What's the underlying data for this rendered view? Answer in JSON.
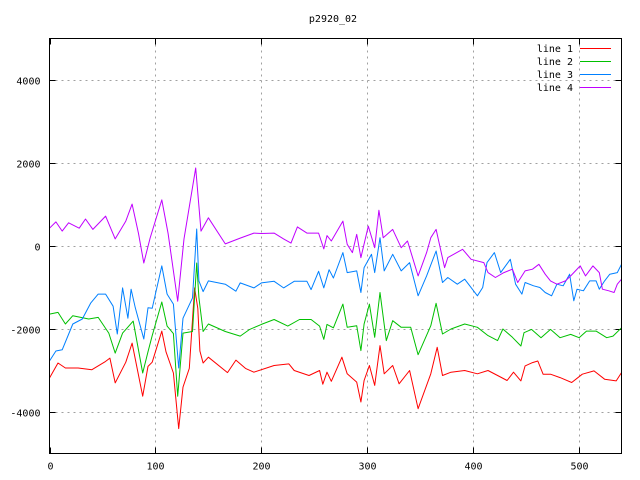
{
  "chart_data": {
    "type": "line",
    "title": "p2920_02",
    "xlabel": "",
    "ylabel": "",
    "xlim": [
      0,
      540
    ],
    "ylim": [
      -5000,
      5000
    ],
    "xticks": [
      0,
      100,
      200,
      300,
      400,
      500
    ],
    "yticks": [
      -4000,
      -2000,
      0,
      2000,
      4000
    ],
    "grid": true,
    "legend_position": "top-right",
    "series": [
      {
        "name": "line 1",
        "color": "#ff0000",
        "points": [
          [
            0,
            -3180
          ],
          [
            8,
            -2820
          ],
          [
            15,
            -2940
          ],
          [
            27,
            -2940
          ],
          [
            40,
            -2980
          ],
          [
            53,
            -2780
          ],
          [
            57,
            -2700
          ],
          [
            62,
            -3300
          ],
          [
            72,
            -2800
          ],
          [
            78,
            -2340
          ],
          [
            88,
            -3620
          ],
          [
            93,
            -2900
          ],
          [
            97,
            -2800
          ],
          [
            106,
            -2050
          ],
          [
            110,
            -2550
          ],
          [
            117,
            -3060
          ],
          [
            122,
            -4400
          ],
          [
            126,
            -3400
          ],
          [
            132,
            -2950
          ],
          [
            137,
            -1010
          ],
          [
            140,
            -1500
          ],
          [
            142,
            -2530
          ],
          [
            145,
            -2820
          ],
          [
            150,
            -2680
          ],
          [
            168,
            -3050
          ],
          [
            176,
            -2750
          ],
          [
            185,
            -2950
          ],
          [
            193,
            -3040
          ],
          [
            212,
            -2880
          ],
          [
            226,
            -2840
          ],
          [
            231,
            -3000
          ],
          [
            245,
            -3120
          ],
          [
            255,
            -3000
          ],
          [
            258,
            -3330
          ],
          [
            262,
            -3040
          ],
          [
            266,
            -3260
          ],
          [
            276,
            -2680
          ],
          [
            281,
            -3080
          ],
          [
            290,
            -3280
          ],
          [
            294,
            -3760
          ],
          [
            297,
            -3240
          ],
          [
            302,
            -2880
          ],
          [
            307,
            -3360
          ],
          [
            312,
            -2400
          ],
          [
            316,
            -3080
          ],
          [
            324,
            -2880
          ],
          [
            330,
            -3320
          ],
          [
            340,
            -3000
          ],
          [
            348,
            -3920
          ],
          [
            360,
            -3080
          ],
          [
            366,
            -2440
          ],
          [
            371,
            -3120
          ],
          [
            379,
            -3040
          ],
          [
            392,
            -3000
          ],
          [
            404,
            -3080
          ],
          [
            414,
            -3000
          ],
          [
            423,
            -3120
          ],
          [
            432,
            -3240
          ],
          [
            438,
            -3040
          ],
          [
            445,
            -3250
          ],
          [
            449,
            -2890
          ],
          [
            456,
            -2810
          ],
          [
            461,
            -2770
          ],
          [
            466,
            -3090
          ],
          [
            473,
            -3090
          ],
          [
            482,
            -3170
          ],
          [
            493,
            -3290
          ],
          [
            503,
            -3090
          ],
          [
            514,
            -3010
          ],
          [
            524,
            -3210
          ],
          [
            535,
            -3250
          ],
          [
            540,
            -3050
          ]
        ]
      },
      {
        "name": "line 2",
        "color": "#00c000",
        "points": [
          [
            0,
            -1640
          ],
          [
            8,
            -1600
          ],
          [
            15,
            -1880
          ],
          [
            22,
            -1680
          ],
          [
            37,
            -1760
          ],
          [
            46,
            -1720
          ],
          [
            56,
            -2100
          ],
          [
            62,
            -2580
          ],
          [
            69,
            -2100
          ],
          [
            79,
            -1810
          ],
          [
            88,
            -3060
          ],
          [
            93,
            -2550
          ],
          [
            97,
            -2160
          ],
          [
            106,
            -1350
          ],
          [
            111,
            -1930
          ],
          [
            117,
            -2110
          ],
          [
            121,
            -3620
          ],
          [
            126,
            -2100
          ],
          [
            135,
            -2060
          ],
          [
            139,
            -410
          ],
          [
            141,
            -1240
          ],
          [
            145,
            -2060
          ],
          [
            150,
            -1880
          ],
          [
            166,
            -2060
          ],
          [
            180,
            -2170
          ],
          [
            189,
            -2010
          ],
          [
            200,
            -1890
          ],
          [
            212,
            -1770
          ],
          [
            225,
            -1930
          ],
          [
            236,
            -1770
          ],
          [
            247,
            -1770
          ],
          [
            255,
            -1930
          ],
          [
            259,
            -2250
          ],
          [
            262,
            -1890
          ],
          [
            268,
            -1970
          ],
          [
            277,
            -1400
          ],
          [
            281,
            -1960
          ],
          [
            290,
            -1920
          ],
          [
            294,
            -2520
          ],
          [
            297,
            -1880
          ],
          [
            302,
            -1400
          ],
          [
            307,
            -2200
          ],
          [
            312,
            -1120
          ],
          [
            318,
            -2280
          ],
          [
            324,
            -1800
          ],
          [
            332,
            -1960
          ],
          [
            341,
            -1960
          ],
          [
            348,
            -2620
          ],
          [
            360,
            -1920
          ],
          [
            365,
            -1380
          ],
          [
            371,
            -2120
          ],
          [
            379,
            -2000
          ],
          [
            392,
            -1880
          ],
          [
            404,
            -1960
          ],
          [
            414,
            -2160
          ],
          [
            423,
            -2280
          ],
          [
            428,
            -2000
          ],
          [
            437,
            -2200
          ],
          [
            445,
            -2410
          ],
          [
            448,
            -2090
          ],
          [
            455,
            -2010
          ],
          [
            464,
            -2210
          ],
          [
            473,
            -2010
          ],
          [
            482,
            -2210
          ],
          [
            492,
            -2130
          ],
          [
            500,
            -2210
          ],
          [
            507,
            -2050
          ],
          [
            516,
            -2050
          ],
          [
            526,
            -2210
          ],
          [
            532,
            -2170
          ],
          [
            540,
            -1970
          ]
        ]
      },
      {
        "name": "line 3",
        "color": "#0080ff",
        "points": [
          [
            0,
            -2770
          ],
          [
            6,
            -2530
          ],
          [
            12,
            -2500
          ],
          [
            22,
            -1880
          ],
          [
            31,
            -1760
          ],
          [
            39,
            -1370
          ],
          [
            46,
            -1160
          ],
          [
            53,
            -1160
          ],
          [
            60,
            -1450
          ],
          [
            64,
            -2120
          ],
          [
            69,
            -1010
          ],
          [
            74,
            -1740
          ],
          [
            77,
            -1040
          ],
          [
            81,
            -1490
          ],
          [
            89,
            -2240
          ],
          [
            93,
            -1490
          ],
          [
            97,
            -1500
          ],
          [
            106,
            -480
          ],
          [
            111,
            -1160
          ],
          [
            117,
            -1400
          ],
          [
            122,
            -2940
          ],
          [
            126,
            -1740
          ],
          [
            135,
            -1250
          ],
          [
            139,
            410
          ],
          [
            141,
            -840
          ],
          [
            145,
            -1100
          ],
          [
            150,
            -840
          ],
          [
            166,
            -920
          ],
          [
            176,
            -1090
          ],
          [
            180,
            -890
          ],
          [
            193,
            -1010
          ],
          [
            200,
            -890
          ],
          [
            212,
            -850
          ],
          [
            221,
            -1010
          ],
          [
            231,
            -850
          ],
          [
            243,
            -850
          ],
          [
            247,
            -1050
          ],
          [
            254,
            -610
          ],
          [
            259,
            -1010
          ],
          [
            264,
            -570
          ],
          [
            268,
            -770
          ],
          [
            277,
            -160
          ],
          [
            281,
            -640
          ],
          [
            290,
            -600
          ],
          [
            294,
            -1120
          ],
          [
            297,
            -520
          ],
          [
            304,
            -200
          ],
          [
            307,
            -640
          ],
          [
            312,
            200
          ],
          [
            316,
            -600
          ],
          [
            324,
            -200
          ],
          [
            332,
            -600
          ],
          [
            340,
            -400
          ],
          [
            348,
            -1200
          ],
          [
            356,
            -720
          ],
          [
            365,
            -120
          ],
          [
            371,
            -880
          ],
          [
            376,
            -760
          ],
          [
            385,
            -920
          ],
          [
            392,
            -800
          ],
          [
            404,
            -1200
          ],
          [
            409,
            -1000
          ],
          [
            413,
            -400
          ],
          [
            420,
            -160
          ],
          [
            426,
            -640
          ],
          [
            435,
            -320
          ],
          [
            440,
            -920
          ],
          [
            446,
            -1160
          ],
          [
            449,
            -880
          ],
          [
            457,
            -960
          ],
          [
            463,
            -1000
          ],
          [
            468,
            -1120
          ],
          [
            474,
            -1200
          ],
          [
            479,
            -920
          ],
          [
            485,
            -960
          ],
          [
            491,
            -680
          ],
          [
            495,
            -1320
          ],
          [
            498,
            -1040
          ],
          [
            504,
            -1080
          ],
          [
            510,
            -840
          ],
          [
            516,
            -840
          ],
          [
            519,
            -1040
          ],
          [
            524,
            -840
          ],
          [
            529,
            -680
          ],
          [
            536,
            -640
          ],
          [
            540,
            -440
          ]
        ]
      },
      {
        "name": "line 4",
        "color": "#c000ff",
        "points": [
          [
            0,
            430
          ],
          [
            6,
            580
          ],
          [
            12,
            360
          ],
          [
            18,
            560
          ],
          [
            28,
            430
          ],
          [
            34,
            650
          ],
          [
            41,
            400
          ],
          [
            53,
            720
          ],
          [
            62,
            170
          ],
          [
            72,
            600
          ],
          [
            78,
            1010
          ],
          [
            84,
            300
          ],
          [
            89,
            -410
          ],
          [
            95,
            190
          ],
          [
            106,
            1110
          ],
          [
            112,
            300
          ],
          [
            121,
            -1330
          ],
          [
            127,
            170
          ],
          [
            138,
            1880
          ],
          [
            143,
            360
          ],
          [
            150,
            680
          ],
          [
            166,
            50
          ],
          [
            180,
            190
          ],
          [
            193,
            310
          ],
          [
            200,
            300
          ],
          [
            212,
            310
          ],
          [
            221,
            170
          ],
          [
            228,
            70
          ],
          [
            234,
            460
          ],
          [
            243,
            310
          ],
          [
            254,
            310
          ],
          [
            259,
            -70
          ],
          [
            262,
            250
          ],
          [
            266,
            120
          ],
          [
            277,
            600
          ],
          [
            281,
            40
          ],
          [
            286,
            -160
          ],
          [
            290,
            280
          ],
          [
            294,
            -280
          ],
          [
            301,
            480
          ],
          [
            307,
            -40
          ],
          [
            311,
            860
          ],
          [
            315,
            200
          ],
          [
            324,
            400
          ],
          [
            332,
            -40
          ],
          [
            338,
            120
          ],
          [
            348,
            -720
          ],
          [
            356,
            -160
          ],
          [
            360,
            200
          ],
          [
            365,
            400
          ],
          [
            373,
            -520
          ],
          [
            376,
            -280
          ],
          [
            390,
            -80
          ],
          [
            398,
            -320
          ],
          [
            410,
            -400
          ],
          [
            414,
            -640
          ],
          [
            421,
            -760
          ],
          [
            429,
            -640
          ],
          [
            437,
            -560
          ],
          [
            442,
            -880
          ],
          [
            449,
            -600
          ],
          [
            456,
            -560
          ],
          [
            462,
            -440
          ],
          [
            468,
            -680
          ],
          [
            473,
            -840
          ],
          [
            479,
            -920
          ],
          [
            487,
            -840
          ],
          [
            492,
            -720
          ],
          [
            501,
            -480
          ],
          [
            506,
            -720
          ],
          [
            513,
            -480
          ],
          [
            519,
            -640
          ],
          [
            522,
            -1040
          ],
          [
            528,
            -1080
          ],
          [
            533,
            -1120
          ],
          [
            536,
            -920
          ],
          [
            540,
            -800
          ]
        ]
      }
    ]
  }
}
